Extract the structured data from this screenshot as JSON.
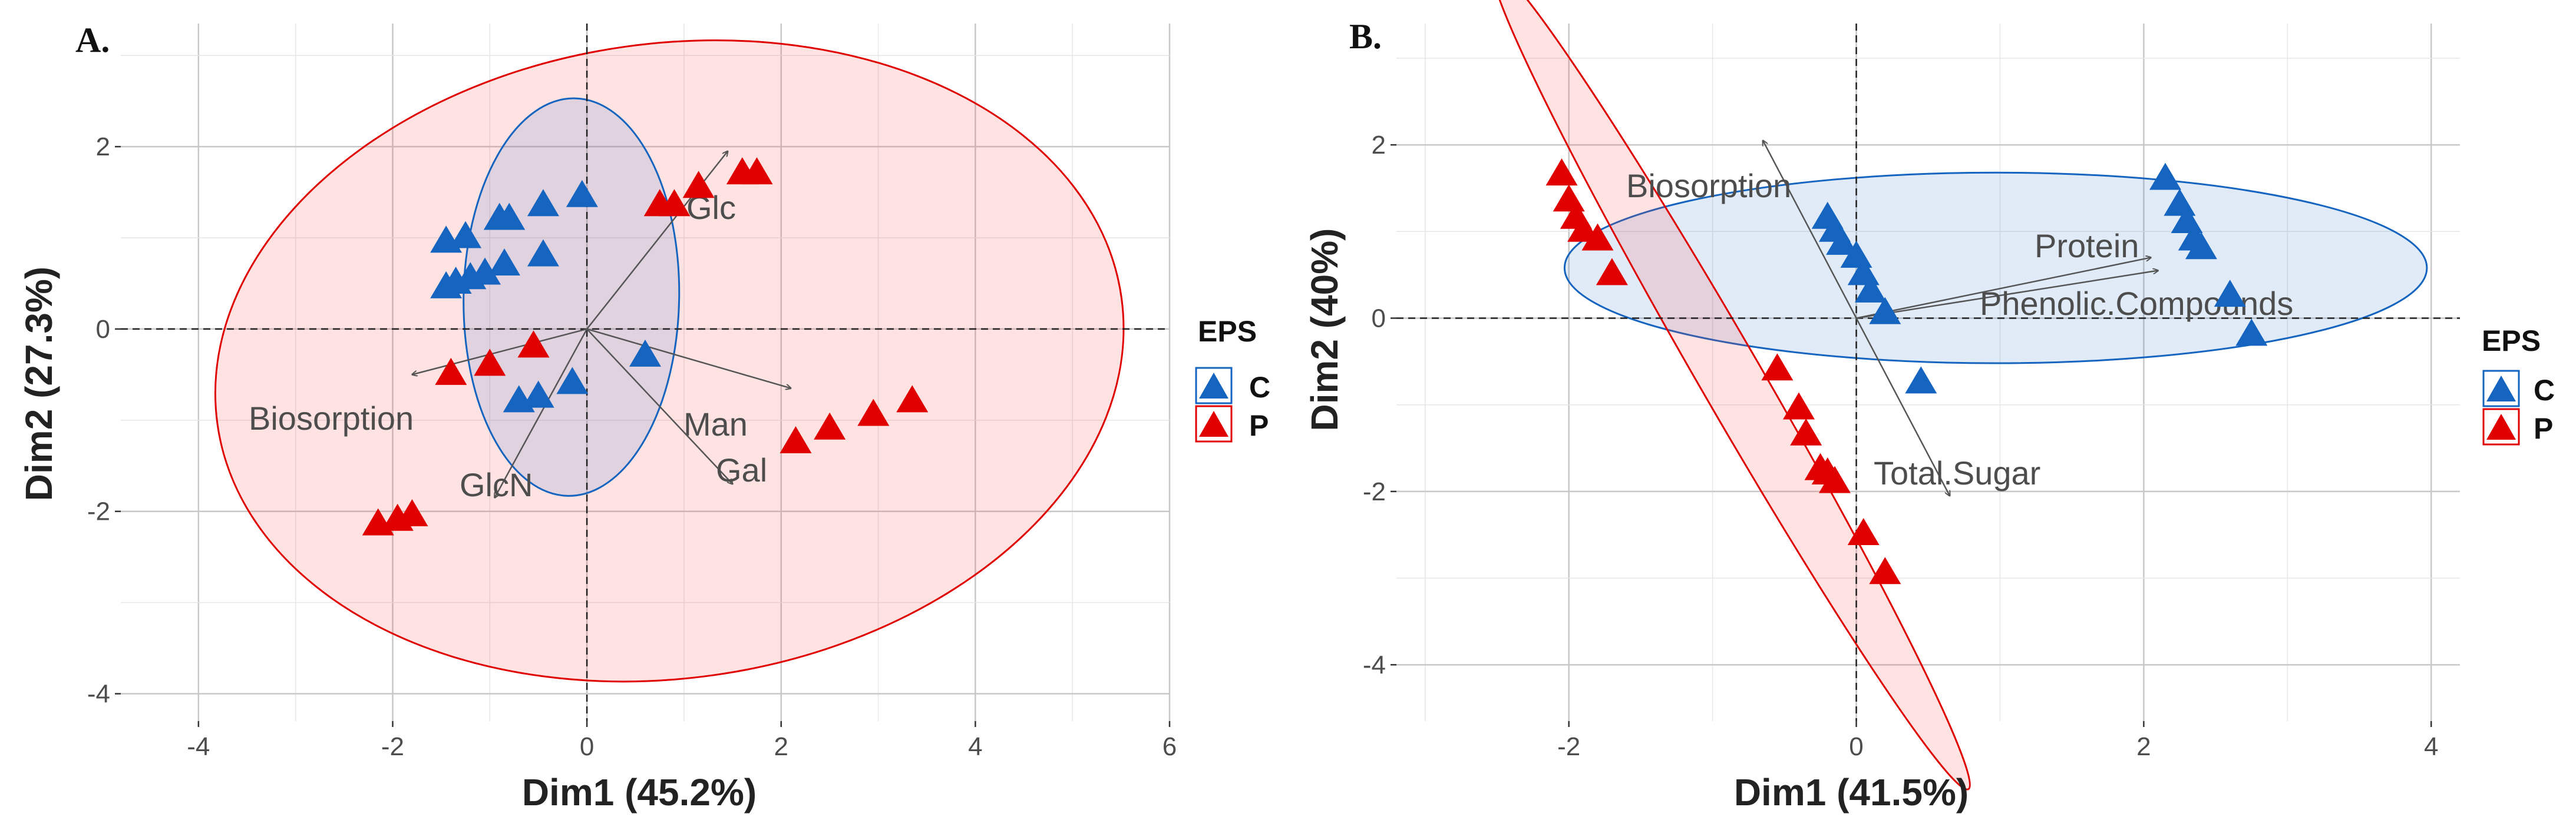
{
  "chart_data": [
    {
      "panel": "A.",
      "type": "scatter",
      "xlabel": "Dim1 (45.2%)",
      "ylabel": "Dim2 (27.3%)",
      "xlim": [
        -4.8,
        6.0
      ],
      "ylim": [
        -4.3,
        3.35
      ],
      "xticks": [
        -4,
        -2,
        0,
        2,
        4,
        6
      ],
      "yticks": [
        -4,
        -2,
        0,
        2
      ],
      "grid": true,
      "legend": {
        "title": "EPS",
        "position": "right",
        "entries": [
          {
            "label": "C",
            "color": "#1565c0"
          },
          {
            "label": "P",
            "color": "#e00000"
          }
        ]
      },
      "series": [
        {
          "name": "C",
          "color": "#1565c0",
          "points": [
            [
              -0.05,
              1.45
            ],
            [
              -0.45,
              1.35
            ],
            [
              -0.9,
              1.2
            ],
            [
              -0.8,
              1.2
            ],
            [
              -1.25,
              1.0
            ],
            [
              -1.45,
              0.95
            ],
            [
              -0.45,
              0.8
            ],
            [
              -0.85,
              0.7
            ],
            [
              -1.05,
              0.6
            ],
            [
              -1.2,
              0.55
            ],
            [
              -1.35,
              0.5
            ],
            [
              -1.45,
              0.45
            ],
            [
              0.6,
              -0.3
            ],
            [
              -0.15,
              -0.6
            ],
            [
              -0.5,
              -0.75
            ],
            [
              -0.7,
              -0.8
            ]
          ],
          "ellipse": {
            "cx": -0.16,
            "cy": 0.35,
            "rx": 1.11,
            "ry": 2.18,
            "angle_deg": -1
          }
        },
        {
          "name": "P",
          "color": "#e00000",
          "points": [
            [
              1.6,
              1.7
            ],
            [
              1.75,
              1.7
            ],
            [
              1.15,
              1.55
            ],
            [
              0.75,
              1.35
            ],
            [
              0.9,
              1.35
            ],
            [
              -0.55,
              -0.2
            ],
            [
              -1.0,
              -0.4
            ],
            [
              -1.4,
              -0.5
            ],
            [
              3.35,
              -0.8
            ],
            [
              2.95,
              -0.95
            ],
            [
              2.5,
              -1.1
            ],
            [
              2.15,
              -1.25
            ],
            [
              -1.8,
              -2.05
            ],
            [
              -1.95,
              -2.1
            ],
            [
              -2.15,
              -2.15
            ]
          ],
          "ellipse": {
            "cx": 0.85,
            "cy": -0.35,
            "rx": 4.7,
            "ry": 3.48,
            "angle_deg": 8
          }
        }
      ],
      "vectors": [
        {
          "label": "Glc",
          "x": 1.45,
          "y": 1.95
        },
        {
          "label": "Man",
          "x": 2.1,
          "y": -0.65
        },
        {
          "label": "Gal",
          "x": 1.5,
          "y": -1.7
        },
        {
          "label": "Biosorption",
          "x": -1.8,
          "y": -0.5
        },
        {
          "label": "GlcN",
          "x": -0.95,
          "y": -1.85
        }
      ]
    },
    {
      "panel": "B.",
      "type": "scatter",
      "xlabel": "Dim1 (41.5%)",
      "ylabel": "Dim2 (40%)",
      "xlim": [
        -3.2,
        4.2
      ],
      "ylim": [
        -4.65,
        3.4
      ],
      "xticks": [
        -2,
        0,
        2,
        4
      ],
      "yticks": [
        -4,
        -2,
        0,
        2
      ],
      "grid": true,
      "legend": {
        "title": "EPS",
        "position": "right",
        "entries": [
          {
            "label": "C",
            "color": "#1565c0"
          },
          {
            "label": "P",
            "color": "#e00000"
          }
        ]
      },
      "series": [
        {
          "name": "C",
          "color": "#1565c0",
          "points": [
            [
              2.15,
              1.6
            ],
            [
              2.25,
              1.3
            ],
            [
              2.3,
              1.1
            ],
            [
              2.35,
              0.9
            ],
            [
              2.4,
              0.8
            ],
            [
              2.6,
              0.25
            ],
            [
              2.75,
              -0.2
            ],
            [
              -0.2,
              1.15
            ],
            [
              -0.15,
              1.0
            ],
            [
              -0.1,
              0.85
            ],
            [
              0.0,
              0.7
            ],
            [
              0.05,
              0.5
            ],
            [
              0.1,
              0.3
            ],
            [
              0.2,
              0.05
            ],
            [
              0.45,
              -0.75
            ]
          ],
          "ellipse": {
            "cx": 0.97,
            "cy": 0.58,
            "rx": 3.0,
            "ry": 1.1,
            "angle_deg": 0
          }
        },
        {
          "name": "P",
          "color": "#e00000",
          "points": [
            [
              -2.05,
              1.65
            ],
            [
              -2.0,
              1.35
            ],
            [
              -1.95,
              1.15
            ],
            [
              -1.9,
              1.0
            ],
            [
              -1.8,
              0.9
            ],
            [
              -1.7,
              0.5
            ],
            [
              -0.55,
              -0.6
            ],
            [
              -0.4,
              -1.05
            ],
            [
              -0.35,
              -1.35
            ],
            [
              -0.25,
              -1.75
            ],
            [
              -0.2,
              -1.8
            ],
            [
              -0.15,
              -1.9
            ],
            [
              0.2,
              -2.95
            ],
            [
              0.05,
              -2.5
            ]
          ],
          "ellipse": {
            "cx": -0.87,
            "cy": -0.7,
            "rx": 3.3,
            "ry": 0.36,
            "angle_deg": -60
          }
        }
      ],
      "vectors": [
        {
          "label": "Biosorption",
          "x": -0.65,
          "y": 2.05
        },
        {
          "label": "Protein",
          "x": 2.05,
          "y": 0.7
        },
        {
          "label": "Phenolic.Compounds",
          "x": 2.1,
          "y": 0.55
        },
        {
          "label": "Total.Sugar",
          "x": 0.65,
          "y": -2.05
        }
      ]
    }
  ]
}
